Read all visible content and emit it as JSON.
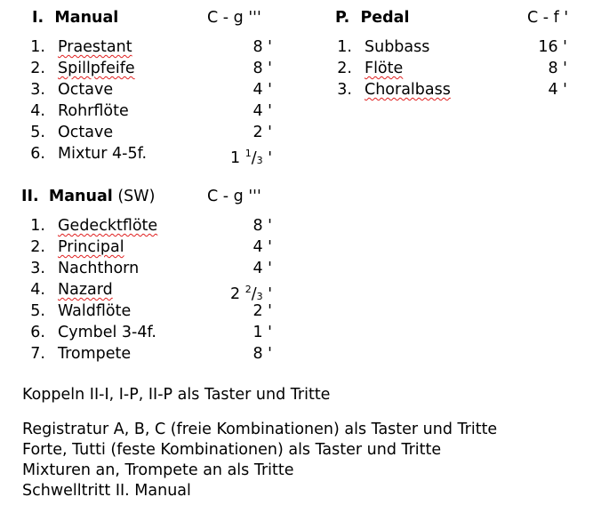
{
  "manual1": {
    "numeral": "I.",
    "title": "Manual",
    "range": "C - g '''",
    "stops": [
      {
        "n": "1.",
        "name": "Praestant",
        "size": "8 '",
        "spell": true
      },
      {
        "n": "2.",
        "name": "Spillpfeife",
        "size": "8 '",
        "spell": true
      },
      {
        "n": "3.",
        "name": "Octave",
        "size": "4 '"
      },
      {
        "n": "4.",
        "name": "Rohrflöte",
        "size": "4 '"
      },
      {
        "n": "5.",
        "name": "Octave",
        "size": "2 '"
      },
      {
        "n": "6.",
        "name": "Mixtur 4-5f.",
        "size": "1 1/3 '"
      }
    ]
  },
  "manual2": {
    "numeral": "II.",
    "title": "Manual",
    "suffix": "(SW)",
    "range": "C - g '''",
    "stops": [
      {
        "n": "1.",
        "name": "Gedecktflöte",
        "size": "8 '",
        "spell": true
      },
      {
        "n": "2.",
        "name": "Principal",
        "size": "4 '",
        "spell": true
      },
      {
        "n": "3.",
        "name": "Nachthorn",
        "size": "4 '"
      },
      {
        "n": "4.",
        "name": "Nazard",
        "size": "2 2/3 '",
        "spell": true
      },
      {
        "n": "5.",
        "name": "Waldflöte",
        "size": "2 '"
      },
      {
        "n": "6.",
        "name": "Cymbel 3-4f.",
        "size": "1 '"
      },
      {
        "n": "7.",
        "name": "Trompete",
        "size": "8 '"
      }
    ]
  },
  "pedal": {
    "numeral": "P.",
    "title": "Pedal",
    "range": "C - f '",
    "stops": [
      {
        "n": "1.",
        "name": "Subbass",
        "size": "16 '"
      },
      {
        "n": "2.",
        "name": "Flöte",
        "size": "8 '",
        "spell": true
      },
      {
        "n": "3.",
        "name": "Choralbass",
        "size": "4 '",
        "spell": true
      }
    ]
  },
  "notes": [
    "Koppeln II-I, I-P, II-P als Taster und Tritte",
    "Registratur A, B, C (freie Kombinationen) als Taster und Tritte",
    "Forte, Tutti (feste Kombinationen) als Taster und Tritte",
    "Mixturen an, Trompete an als Tritte",
    "Schwelltritt II. Manual"
  ]
}
